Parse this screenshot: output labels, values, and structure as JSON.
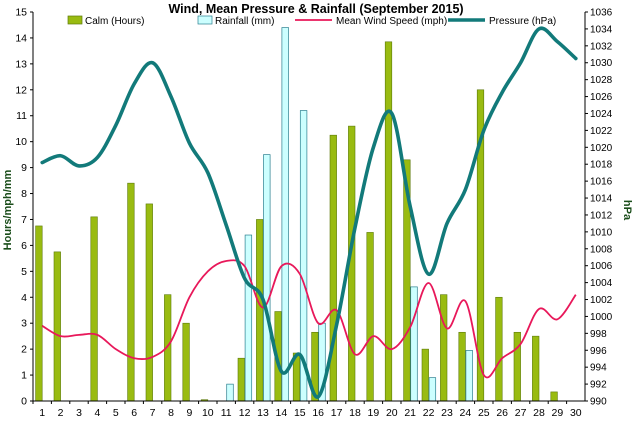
{
  "chart_data": {
    "type": "bar",
    "title": "Wind, Mean Pressure & Rainfall (September 2015)",
    "xlabel": "",
    "ylabel_left": "Hours/mph/mm",
    "ylabel_right": "hPa",
    "ylim_left": [
      0,
      15
    ],
    "ylim_right": [
      990,
      1036
    ],
    "yticks_left": [
      "0",
      "1",
      "2",
      "3",
      "4",
      "5",
      "6",
      "7",
      "8",
      "9",
      "10",
      "11",
      "12",
      "13",
      "14",
      "15"
    ],
    "yticks_right": [
      "990",
      "992",
      "994",
      "996",
      "998",
      "1000",
      "1002",
      "1004",
      "1006",
      "1008",
      "1010",
      "1012",
      "1014",
      "1016",
      "1018",
      "1020",
      "1022",
      "1024",
      "1026",
      "1028",
      "1030",
      "1032",
      "1034",
      "1036"
    ],
    "categories": [
      "1",
      "2",
      "3",
      "4",
      "5",
      "6",
      "7",
      "8",
      "9",
      "10",
      "11",
      "12",
      "13",
      "14",
      "15",
      "16",
      "17",
      "18",
      "19",
      "20",
      "21",
      "22",
      "23",
      "24",
      "25",
      "26",
      "27",
      "28",
      "29",
      "30"
    ],
    "grid": false,
    "legend_position": "top",
    "series": [
      {
        "name": "Calm (Hours)",
        "kind": "bar",
        "axis": "left",
        "color": "#99bb11",
        "values": [
          6.75,
          5.75,
          0,
          7.1,
          0,
          8.4,
          7.6,
          4.1,
          3.0,
          0.05,
          0,
          1.65,
          7.0,
          3.45,
          1.85,
          2.65,
          10.25,
          10.6,
          6.5,
          13.85,
          9.3,
          2.0,
          4.1,
          2.65,
          12.0,
          4.0,
          2.65,
          2.5,
          0.35,
          0
        ]
      },
      {
        "name": "Rainfall (mm)",
        "kind": "bar",
        "axis": "left",
        "color": "#ccffff",
        "values": [
          0,
          0,
          0,
          0,
          0,
          0,
          0,
          0,
          0,
          0,
          0.65,
          6.4,
          9.5,
          14.4,
          11.2,
          3.0,
          0,
          0,
          0,
          0,
          4.4,
          0.9,
          0,
          1.95,
          0,
          0,
          0,
          0,
          0,
          0
        ]
      },
      {
        "name": "Mean Wind Speed (mph)",
        "kind": "line",
        "axis": "left",
        "color": "#e8185a",
        "values": [
          2.9,
          2.5,
          2.55,
          2.55,
          2.0,
          1.65,
          1.7,
          2.3,
          4.0,
          5.0,
          5.4,
          5.2,
          3.6,
          5.2,
          4.9,
          3.0,
          3.5,
          1.8,
          2.5,
          2.0,
          2.85,
          4.55,
          2.8,
          3.85,
          1.0,
          1.65,
          2.2,
          3.55,
          3.15,
          4.1
        ]
      },
      {
        "name": "Pressure (hPa)",
        "kind": "line",
        "axis": "right",
        "color": "#127a7a",
        "values": [
          1018.2,
          1019.0,
          1017.8,
          1018.8,
          1022.6,
          1027.5,
          1030.0,
          1026.0,
          1020.5,
          1017.0,
          1010.8,
          1004.5,
          1002.0,
          993.5,
          995.5,
          990.5,
          999.0,
          1010.5,
          1020.0,
          1024.0,
          1013.0,
          1005.0,
          1011.0,
          1015.0,
          1022.0,
          1026.5,
          1030.0,
          1034.0,
          1032.5,
          1030.5
        ]
      }
    ]
  }
}
